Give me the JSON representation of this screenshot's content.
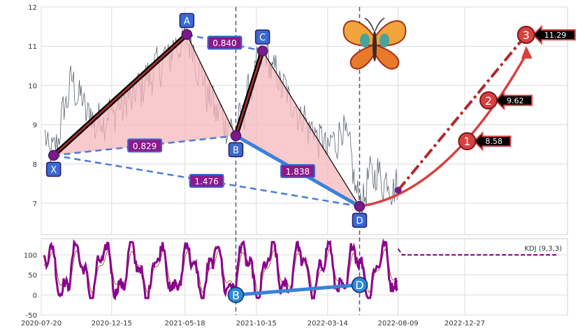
{
  "chart_data": [
    {
      "type": "line",
      "panel": "price",
      "title": "",
      "xlabel": "",
      "ylabel": "",
      "ylim": [
        6.2,
        12.0
      ],
      "y_ticks": [
        7,
        8,
        9,
        10,
        11,
        12
      ],
      "x_ticks": [
        "2020-07-20",
        "2020-12-15",
        "2021-05-18",
        "2021-10-15",
        "2022-03-14",
        "2022-08-09",
        "2022-12-27"
      ],
      "x_range": [
        "2020-07-20",
        "2023-07-31"
      ],
      "grid": true,
      "pattern": "Butterfly harmonic",
      "points": [
        {
          "label": "X",
          "date": "2020-08-15",
          "value": 8.22
        },
        {
          "label": "A",
          "date": "2021-05-22",
          "value": 11.3
        },
        {
          "label": "B",
          "date": "2021-09-02",
          "value": 8.72
        },
        {
          "label": "C",
          "date": "2021-10-28",
          "value": 10.88
        },
        {
          "label": "D",
          "date": "2022-05-20",
          "value": 6.92
        }
      ],
      "ratios": [
        {
          "label": "0.840",
          "from": "A",
          "to": "C"
        },
        {
          "label": "0.829",
          "from": "X",
          "to": "B"
        },
        {
          "label": "1.838",
          "from": "B",
          "to": "D"
        },
        {
          "label": "1.476",
          "from": "X",
          "to": "D"
        }
      ],
      "targets": [
        {
          "label": "1",
          "value": "8.58",
          "date": "2023-01-01",
          "y": 8.58
        },
        {
          "label": "2",
          "value": "9.62",
          "date": "2023-02-15",
          "y": 9.62
        },
        {
          "label": "3",
          "value": "11.29",
          "date": "2023-05-05",
          "y": 11.29
        }
      ],
      "projection_start": {
        "date": "2022-08-09",
        "value": 7.33
      },
      "vertical_markers": [
        "2021-09-02",
        "2022-05-20"
      ]
    },
    {
      "type": "line",
      "panel": "indicator",
      "title": "",
      "legend": "KDJ (9,3,3)",
      "ylim": [
        -50,
        140
      ],
      "y_ticks": [
        -50,
        0,
        50,
        100
      ],
      "grid": true,
      "series": [
        {
          "name": "",
          "color": "#8b008b",
          "description_values": "oscillating between about -5 and 130"
        }
      ],
      "b_point": {
        "label": "B",
        "date": "2021-09-02",
        "value": 0
      },
      "d_point": {
        "label": "D",
        "date": "2022-05-20",
        "value": 25
      },
      "forecast_level": 100
    }
  ],
  "colors": {
    "price_line": "#5a6470",
    "xabc_fill": "#f6b7bc",
    "leg_black": "#000000",
    "leg_red": "#b03030",
    "dashed_blue": "#4a7bd8",
    "thick_blue": "#3a82d8",
    "label_box": "#8b1a8b",
    "label_border": "#3a6ad0",
    "point_box": "#3a6ad0",
    "pivot_dot": "#7a1a8b",
    "target_red": "#d94040",
    "kdj": "#8b008b"
  },
  "icons": [
    "butterfly-icon"
  ]
}
